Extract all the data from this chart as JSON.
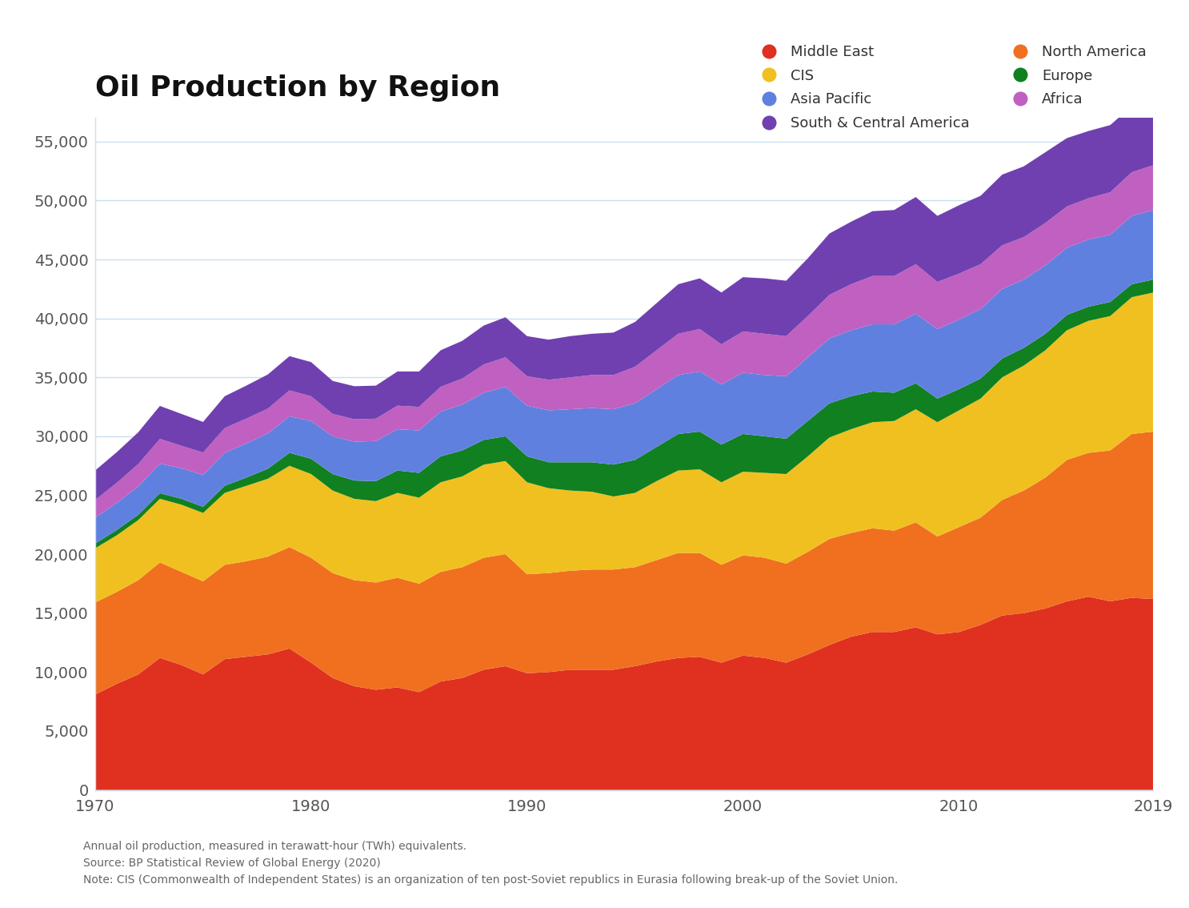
{
  "title": "Oil Production by Region",
  "subtitle_lines": [
    "Annual oil production, measured in terawatt-hour (TWh) equivalents.",
    "Source: BP Statistical Review of Global Energy (2020)",
    "Note: CIS (Commonwealth of Independent States) is an organization of ten post-Soviet republics in Eurasia following break-up of the Soviet Union."
  ],
  "years": [
    1970,
    1971,
    1972,
    1973,
    1974,
    1975,
    1976,
    1977,
    1978,
    1979,
    1980,
    1981,
    1982,
    1983,
    1984,
    1985,
    1986,
    1987,
    1988,
    1989,
    1990,
    1991,
    1992,
    1993,
    1994,
    1995,
    1996,
    1997,
    1998,
    1999,
    2000,
    2001,
    2002,
    2003,
    2004,
    2005,
    2006,
    2007,
    2008,
    2009,
    2010,
    2011,
    2012,
    2013,
    2014,
    2015,
    2016,
    2017,
    2018,
    2019
  ],
  "regions": [
    {
      "name": "Middle East",
      "color": "#e03020",
      "values": [
        8100,
        9000,
        9800,
        11200,
        10600,
        9800,
        11100,
        11300,
        11500,
        12000,
        10800,
        9500,
        8800,
        8500,
        8700,
        8300,
        9200,
        9500,
        10200,
        10500,
        9900,
        10000,
        10200,
        10200,
        10200,
        10500,
        10900,
        11200,
        11300,
        10800,
        11400,
        11200,
        10800,
        11500,
        12300,
        13000,
        13400,
        13400,
        13800,
        13200,
        13400,
        14000,
        14800,
        15000,
        15400,
        16000,
        16400,
        16000,
        16300,
        16200
      ]
    },
    {
      "name": "North America",
      "color": "#f07020",
      "values": [
        7800,
        7800,
        8000,
        8100,
        7900,
        7900,
        8000,
        8100,
        8300,
        8600,
        8900,
        8900,
        9000,
        9100,
        9300,
        9200,
        9300,
        9400,
        9500,
        9500,
        8400,
        8400,
        8400,
        8500,
        8500,
        8400,
        8600,
        8900,
        8800,
        8300,
        8500,
        8500,
        8400,
        8700,
        9000,
        8800,
        8800,
        8600,
        8900,
        8300,
        8900,
        9100,
        9800,
        10400,
        11100,
        12000,
        12200,
        12800,
        13900,
        14200
      ]
    },
    {
      "name": "CIS",
      "color": "#f0c020",
      "values": [
        4600,
        4800,
        5100,
        5400,
        5700,
        5800,
        6100,
        6400,
        6600,
        6900,
        7100,
        7000,
        6900,
        6900,
        7200,
        7300,
        7600,
        7700,
        7900,
        7900,
        7800,
        7200,
        6800,
        6600,
        6200,
        6300,
        6700,
        7000,
        7100,
        7000,
        7100,
        7200,
        7600,
        8100,
        8600,
        8800,
        9000,
        9300,
        9600,
        9700,
        9900,
        10100,
        10400,
        10600,
        10800,
        11000,
        11200,
        11400,
        11600,
        11800
      ]
    },
    {
      "name": "Europe",
      "color": "#108020",
      "values": [
        400,
        450,
        450,
        480,
        500,
        520,
        600,
        700,
        850,
        1100,
        1300,
        1400,
        1550,
        1700,
        1900,
        2100,
        2200,
        2200,
        2100,
        2100,
        2200,
        2200,
        2400,
        2500,
        2700,
        2800,
        2900,
        3100,
        3200,
        3200,
        3200,
        3100,
        3000,
        3000,
        2900,
        2800,
        2600,
        2400,
        2200,
        2000,
        1800,
        1700,
        1600,
        1500,
        1400,
        1300,
        1200,
        1200,
        1100,
        1100
      ]
    },
    {
      "name": "Asia Pacific",
      "color": "#6080e0",
      "values": [
        2200,
        2300,
        2400,
        2500,
        2600,
        2700,
        2800,
        2900,
        3000,
        3100,
        3200,
        3200,
        3300,
        3400,
        3500,
        3600,
        3800,
        3900,
        4000,
        4200,
        4300,
        4400,
        4500,
        4600,
        4700,
        4800,
        4900,
        5000,
        5100,
        5100,
        5200,
        5200,
        5300,
        5400,
        5500,
        5600,
        5700,
        5800,
        5900,
        5900,
        5900,
        5900,
        5900,
        5800,
        5800,
        5700,
        5700,
        5700,
        5800,
        5900
      ]
    },
    {
      "name": "Africa",
      "color": "#c060c0",
      "values": [
        1500,
        1700,
        1900,
        2100,
        1900,
        1900,
        2100,
        2100,
        2100,
        2200,
        2100,
        1900,
        1900,
        1900,
        2000,
        2000,
        2100,
        2200,
        2400,
        2500,
        2500,
        2600,
        2700,
        2800,
        2900,
        3100,
        3300,
        3500,
        3600,
        3400,
        3500,
        3500,
        3400,
        3500,
        3700,
        3900,
        4100,
        4100,
        4200,
        4000,
        3900,
        3800,
        3700,
        3600,
        3600,
        3500,
        3500,
        3600,
        3700,
        3800
      ]
    },
    {
      "name": "South & Central America",
      "color": "#7040b0",
      "values": [
        2500,
        2600,
        2700,
        2800,
        2700,
        2600,
        2700,
        2800,
        2900,
        2900,
        2900,
        2800,
        2800,
        2800,
        2900,
        3000,
        3100,
        3200,
        3300,
        3400,
        3400,
        3400,
        3500,
        3500,
        3600,
        3800,
        4000,
        4200,
        4300,
        4400,
        4600,
        4700,
        4700,
        4900,
        5200,
        5300,
        5500,
        5600,
        5700,
        5600,
        5800,
        5800,
        6000,
        6000,
        6000,
        5800,
        5700,
        5700,
        5600,
        5500
      ]
    }
  ],
  "stack_order": [
    "Middle East",
    "North America",
    "CIS",
    "Europe",
    "Asia Pacific",
    "Africa",
    "South & Central America"
  ],
  "legend_order": [
    "Middle East",
    "CIS",
    "Asia Pacific",
    "South & Central America",
    "North America",
    "Europe",
    "Africa"
  ],
  "ylim": [
    0,
    57000
  ],
  "yticks": [
    0,
    5000,
    10000,
    15000,
    20000,
    25000,
    30000,
    35000,
    40000,
    45000,
    50000,
    55000
  ],
  "xticks": [
    1970,
    1980,
    1990,
    2000,
    2010,
    2019
  ],
  "background_color": "#ffffff",
  "grid_color": "#c8dff0",
  "title_fontsize": 26,
  "tick_fontsize": 14,
  "legend_fontsize": 13,
  "note_fontsize": 10
}
